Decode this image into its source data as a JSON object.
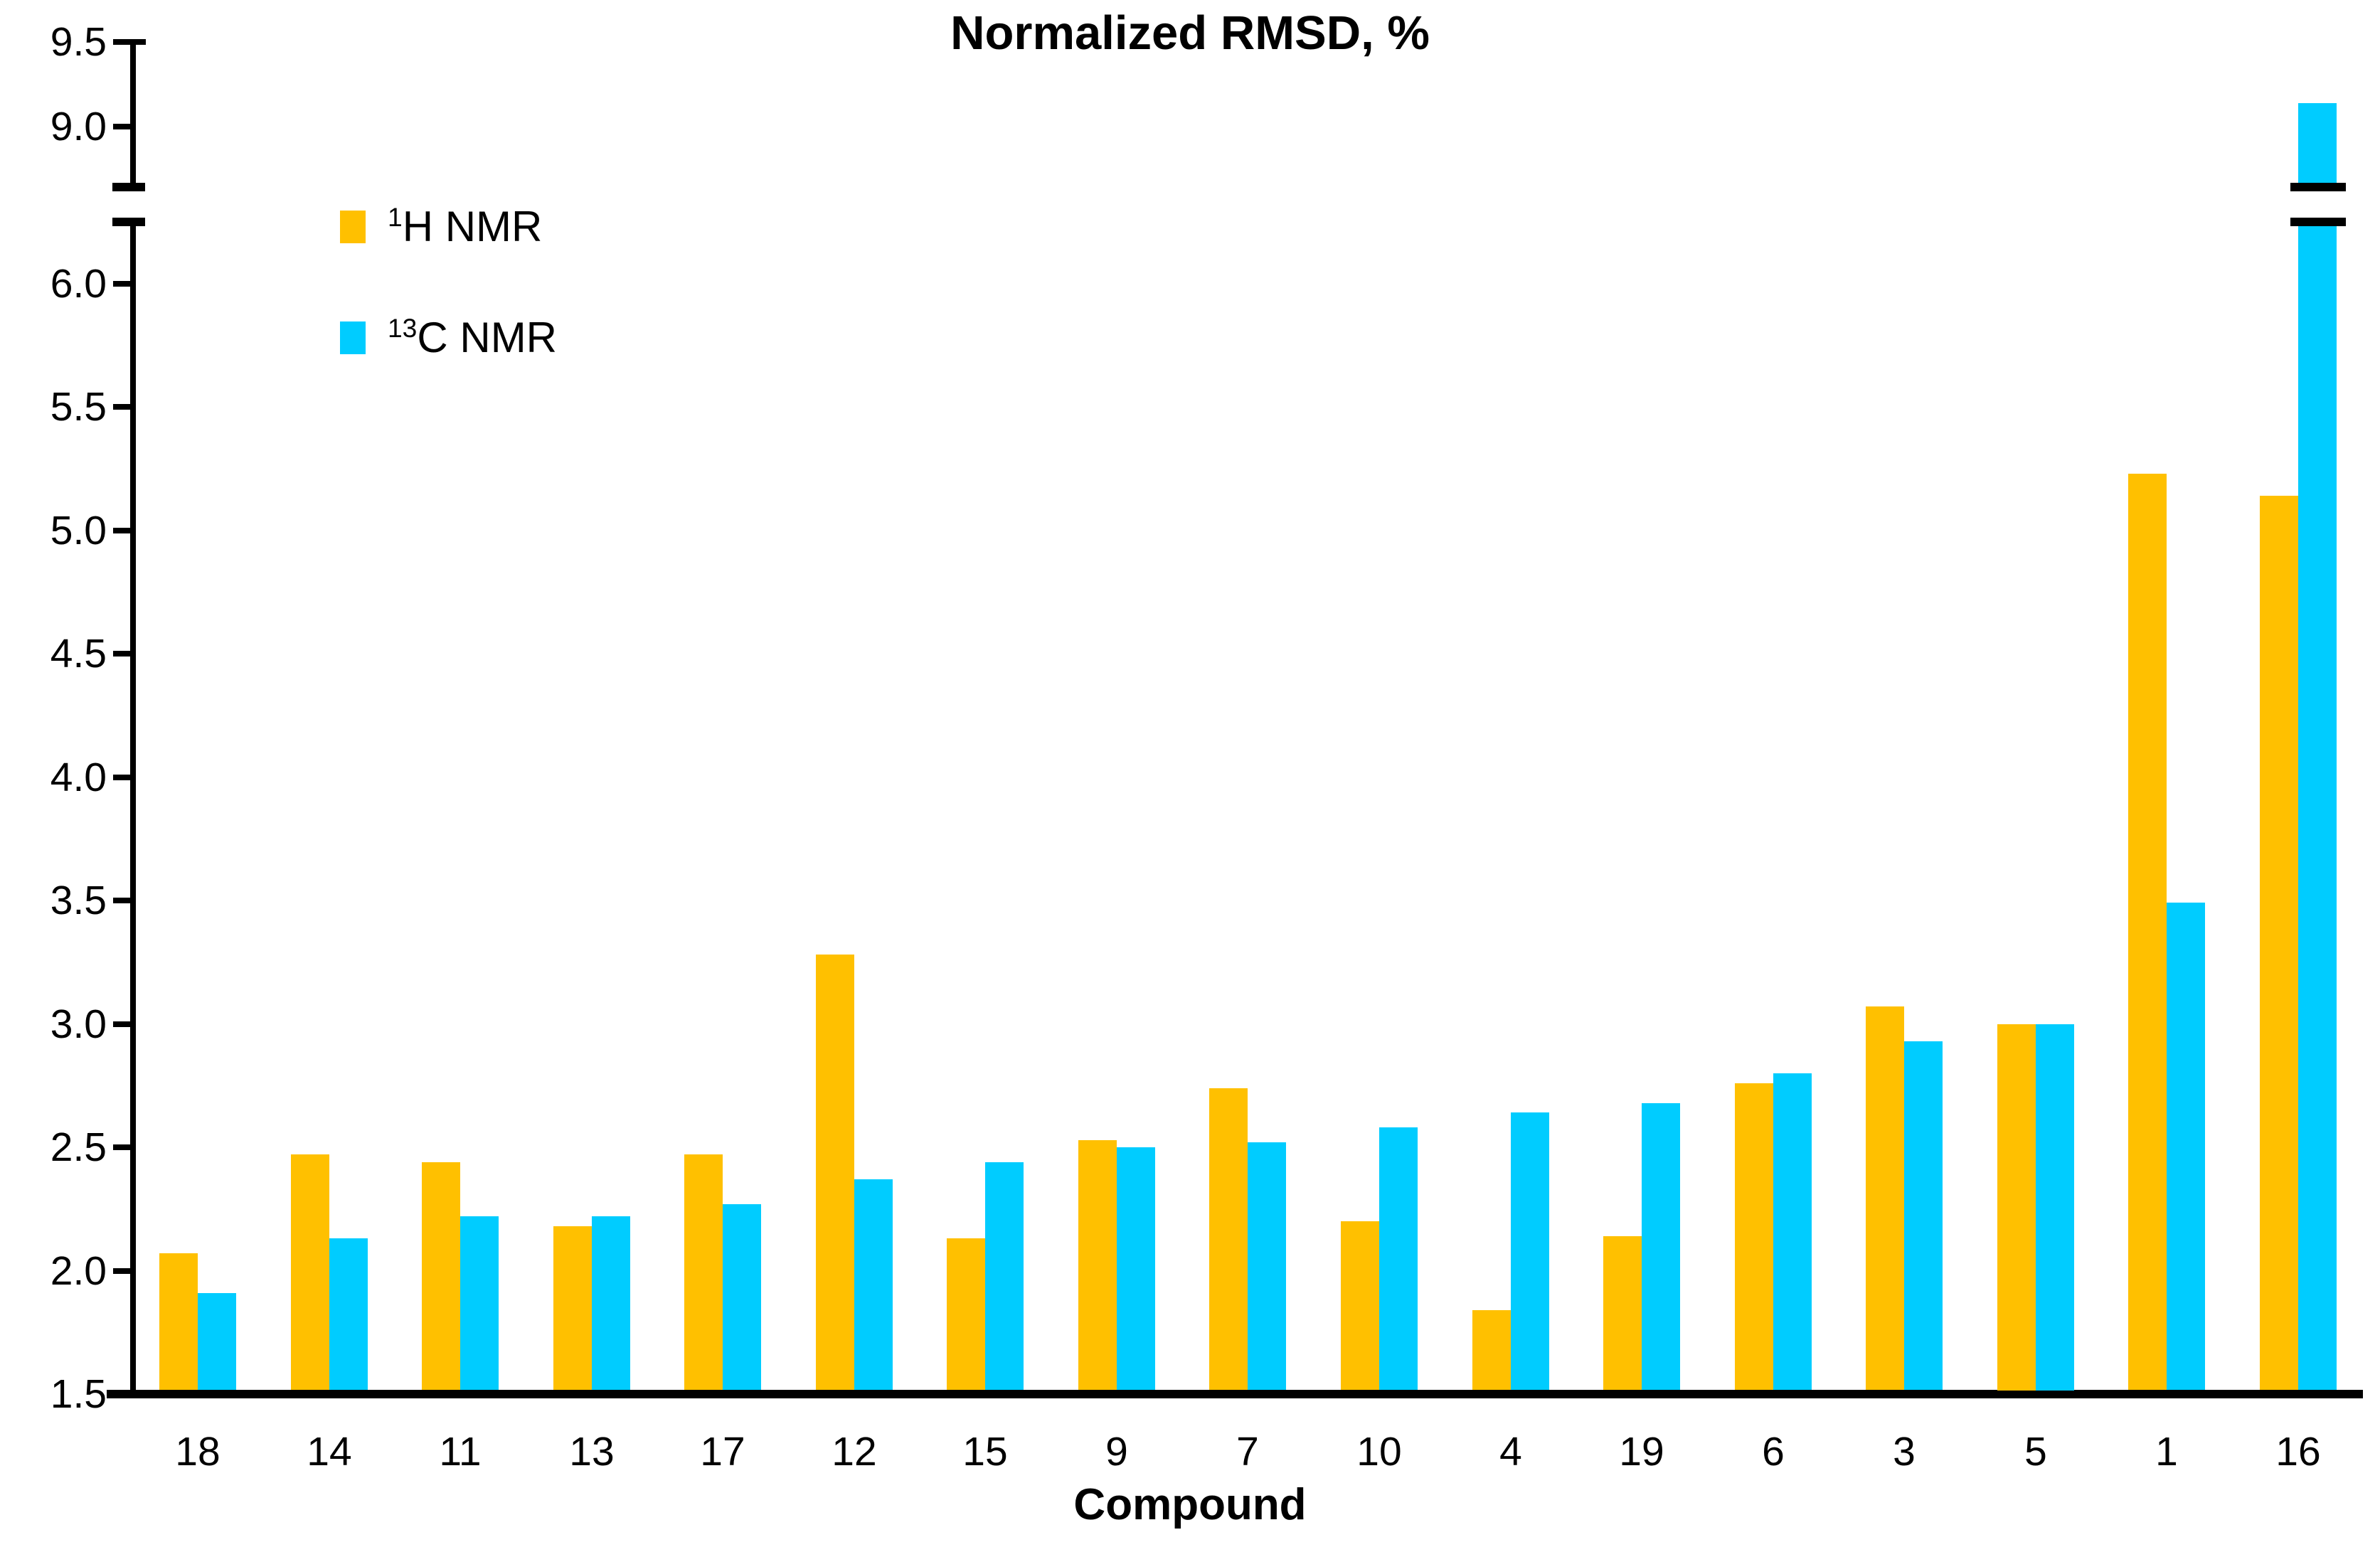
{
  "title": "Normalized RMSD, %",
  "x_axis": {
    "label": "Compound"
  },
  "colors": {
    "h_nmr": "#FFC000",
    "c13_nmr": "#00CCFF",
    "axis": "#000000",
    "background": "#FFFFFF"
  },
  "legend": [
    {
      "sup": "1",
      "text": "H NMR",
      "color_key": "h_nmr"
    },
    {
      "sup": "13",
      "text": "C NMR",
      "color_key": "c13_nmr"
    }
  ],
  "chart_data": {
    "type": "bar",
    "title": "Normalized RMSD, %",
    "xlabel": "Compound",
    "ylabel": "Normalized RMSD, %",
    "categories": [
      "18",
      "14",
      "11",
      "13",
      "17",
      "12",
      "15",
      "9",
      "7",
      "10",
      "4",
      "19",
      "6",
      "3",
      "5",
      "1",
      "16"
    ],
    "series": [
      {
        "name": "1H NMR",
        "color": "#FFC000",
        "values": [
          2.07,
          2.47,
          2.44,
          2.18,
          2.47,
          3.28,
          2.13,
          2.53,
          2.74,
          2.2,
          1.84,
          2.14,
          2.76,
          3.07,
          3.0,
          5.23,
          5.14
        ]
      },
      {
        "name": "13C NMR",
        "color": "#00CCFF",
        "values": [
          1.91,
          2.13,
          2.22,
          2.22,
          2.27,
          2.37,
          2.44,
          2.5,
          2.52,
          2.58,
          2.64,
          2.68,
          2.8,
          2.93,
          3.0,
          3.49,
          9.14
        ]
      }
    ],
    "y_tick_labels_lower": [
      "1.5",
      "2.0",
      "2.5",
      "3.0",
      "3.5",
      "4.0",
      "4.5",
      "5.0",
      "5.5",
      "6.0"
    ],
    "y_tick_values_lower": [
      1.5,
      2.0,
      2.5,
      3.0,
      3.5,
      4.0,
      4.5,
      5.0,
      5.5,
      6.0
    ],
    "y_tick_labels_upper": [
      "9.0",
      "9.5"
    ],
    "y_tick_values_upper": [
      9.0,
      9.5
    ],
    "axis_break": {
      "between": [
        6.25,
        8.65
      ]
    },
    "ylim": [
      1.5,
      9.6
    ],
    "grid": false,
    "legend_position": "upper-left-inside"
  }
}
